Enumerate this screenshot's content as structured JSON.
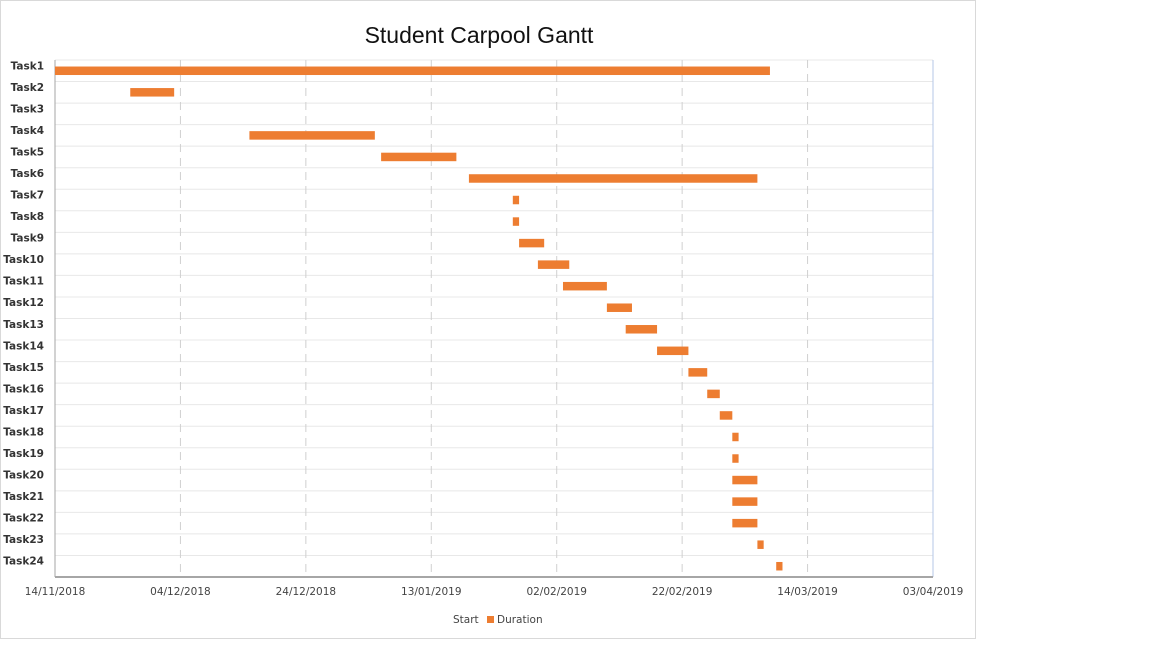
{
  "chart_data": {
    "type": "bar",
    "subtype": "gantt",
    "title": "Student Carpool Gantt",
    "xlabel": "",
    "ylabel": "",
    "x_axis_type": "date",
    "xlim": [
      "2018-11-14",
      "2019-04-03"
    ],
    "x_ticks": [
      "14/11/2018",
      "04/12/2018",
      "24/12/2018",
      "13/01/2019",
      "02/02/2019",
      "22/02/2019",
      "14/03/2019",
      "03/04/2019"
    ],
    "grid": true,
    "legend": {
      "position": "bottom",
      "entries": [
        "Start",
        "Duration"
      ]
    },
    "colors": {
      "start": "none",
      "duration": "#ED7D31"
    },
    "categories": [
      "Task1",
      "Task2",
      "Task3",
      "Task4",
      "Task5",
      "Task6",
      "Task7",
      "Task8",
      "Task9",
      "Task10",
      "Task11",
      "Task12",
      "Task13",
      "Task14",
      "Task15",
      "Task16",
      "Task17",
      "Task18",
      "Task19",
      "Task20",
      "Task21",
      "Task22",
      "Task23",
      "Task24"
    ],
    "series": [
      {
        "name": "Start",
        "values": [
          "2018-11-14",
          "2018-11-26",
          "2018-11-26",
          "2018-12-15",
          "2019-01-05",
          "2019-01-19",
          "2019-01-26",
          "2019-01-26",
          "2019-01-27",
          "2019-01-30",
          "2019-02-03",
          "2019-02-10",
          "2019-02-13",
          "2019-02-18",
          "2019-02-23",
          "2019-02-26",
          "2019-02-28",
          "2019-03-02",
          "2019-03-02",
          "2019-03-02",
          "2019-03-02",
          "2019-03-02",
          "2019-03-06",
          "2019-03-09"
        ]
      },
      {
        "name": "Duration",
        "values": [
          114,
          7,
          0,
          20,
          12,
          46,
          1,
          1,
          4,
          5,
          7,
          4,
          5,
          5,
          3,
          2,
          2,
          1,
          1,
          4,
          4,
          4,
          1,
          1
        ]
      }
    ]
  }
}
